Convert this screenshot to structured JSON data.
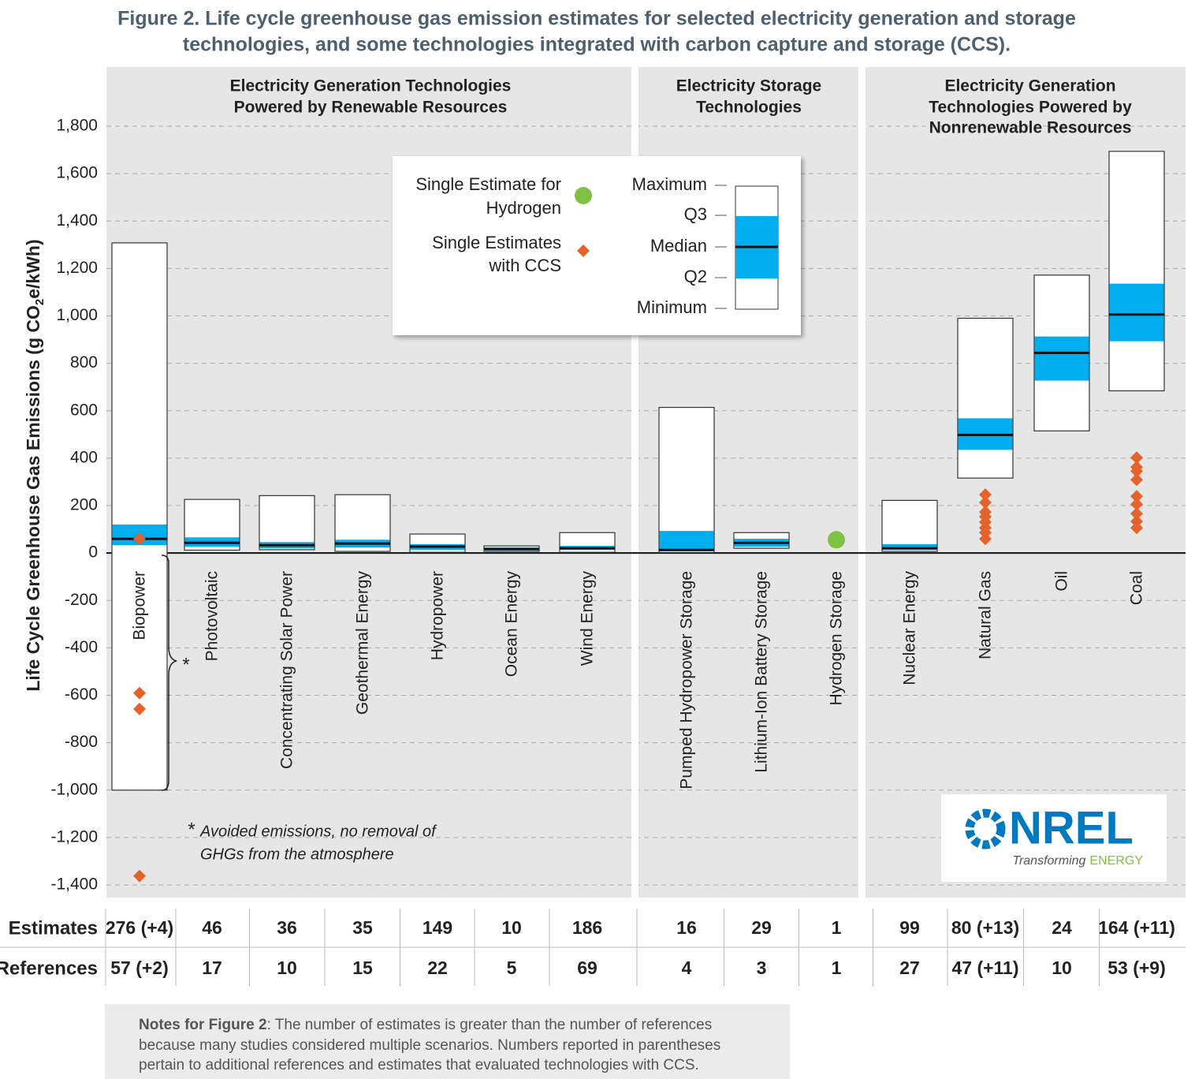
{
  "chart_data": {
    "type": "box",
    "title": [
      "Figure 2. Life cycle greenhouse gas emission estimates for selected electricity generation and storage",
      "technologies, and some technologies integrated with carbon capture and storage (CCS)."
    ],
    "y_label": [
      "Life Cycle Greenhouse Gas Emissions (g CO",
      "2",
      "e/kWh)"
    ],
    "ylim": [
      -1400,
      1800
    ],
    "yticks": [
      {
        "value": -1400,
        "label": "-1,400"
      },
      {
        "value": -1200,
        "label": "-1,200"
      },
      {
        "value": -1000,
        "label": "-1,000"
      },
      -800,
      -600,
      -400,
      -200,
      0,
      200,
      400,
      600,
      800,
      {
        "value": 1000,
        "label": "1,000"
      },
      {
        "value": 1200,
        "label": "1,200"
      },
      {
        "value": 1400,
        "label": "1,400"
      },
      {
        "value": 1600,
        "label": "1,600"
      },
      {
        "value": 1800,
        "label": "1,800"
      }
    ],
    "grid": true,
    "sections": [
      {
        "title": [
          "Electricity Generation Technologies",
          "Powered by Renewable Resources"
        ]
      },
      {
        "title": [
          "Electricity Storage",
          "Technologies"
        ]
      },
      {
        "title": [
          "Electricity Generation",
          "Technologies Powered by",
          "Nonrenewable Resources"
        ]
      }
    ],
    "categories": [
      "Biopower",
      "Photovoltaic",
      "Concentrating Solar Power",
      "Geothermal Energy",
      "Hydropower",
      "Ocean Energy",
      "Wind Energy",
      "Pumped Hydropower Storage",
      "Lithium-Ion Battery Storage",
      "Hydrogen Storage",
      "Nuclear Energy",
      "Natural Gas",
      "Oil",
      "Coal"
    ],
    "box_color": "#00aeef",
    "boxes": [
      {
        "min": -1000,
        "q1": 33,
        "median": 60,
        "q3": 120,
        "max": 1308
      },
      {
        "min": 12,
        "q1": 26,
        "median": 43,
        "q3": 66,
        "max": 226
      },
      {
        "min": 14,
        "q1": 20,
        "median": 33,
        "q3": 46,
        "max": 242
      },
      {
        "min": 7,
        "q1": 23,
        "median": 40,
        "q3": 56,
        "max": 246
      },
      {
        "min": 3,
        "q1": 13,
        "median": 27,
        "q3": 37,
        "max": 80
      },
      {
        "min": 7,
        "q1": 10,
        "median": 17,
        "q3": 23,
        "max": 30
      },
      {
        "min": 3,
        "q1": 13,
        "median": 20,
        "q3": 30,
        "max": 86
      },
      {
        "min": 2,
        "q1": 7,
        "median": 13,
        "q3": 93,
        "max": 614
      },
      {
        "min": 20,
        "q1": 27,
        "median": 43,
        "q3": 60,
        "max": 86
      },
      null,
      {
        "min": 7,
        "q1": 13,
        "median": 20,
        "q3": 37,
        "max": 222
      },
      {
        "min": 316,
        "q1": 435,
        "median": 498,
        "q3": 568,
        "max": 990
      },
      {
        "min": 515,
        "q1": 727,
        "median": 844,
        "q3": 913,
        "max": 1172
      },
      {
        "min": 684,
        "q1": 893,
        "median": 1006,
        "q3": 1136,
        "max": 1694
      }
    ],
    "box_legend": [
      "Maximum",
      "Q3",
      "Median",
      "Q2",
      "Minimum"
    ],
    "hydrogen": {
      "name": [
        "Single Estimate for",
        "Hydrogen"
      ],
      "color": "#7dc242",
      "values": [
        null,
        null,
        null,
        null,
        null,
        null,
        null,
        null,
        null,
        56,
        null,
        null,
        null,
        null
      ]
    },
    "ccs": {
      "name": [
        "Single Estimates",
        "with CCS"
      ],
      "color": "#e5622a",
      "values": [
        [
          60,
          -591,
          -658,
          -1362
        ],
        [],
        [],
        [],
        [],
        [],
        [],
        [],
        [],
        [],
        [],
        [
          246,
          213,
          173,
          153,
          130,
          106,
          86,
          60
        ],
        [],
        [
          402,
          362,
          345,
          309,
          239,
          206,
          166,
          133,
          106
        ]
      ]
    },
    "annotation": {
      "mark": "*",
      "lines": [
        "Avoided emissions, no removal of",
        "GHGs from the atmosphere"
      ]
    },
    "table": {
      "row_labels": [
        "Estimates",
        "References"
      ],
      "rows": [
        [
          "276 (+4)",
          "46",
          "36",
          "35",
          "149",
          "10",
          "186",
          "16",
          "29",
          "1",
          "99",
          "80 (+13)",
          "24",
          "164 (+11)"
        ],
        [
          "57 (+2)",
          "17",
          "10",
          "15",
          "22",
          "5",
          "69",
          "4",
          "3",
          "1",
          "27",
          "47 (+11)",
          "10",
          "53 (+9)"
        ]
      ]
    },
    "notes": {
      "heading": "Notes for Figure 2",
      "lines": [
        ": The number of estimates is greater than the number of references",
        "because many studies considered multiple scenarios. Numbers reported in parentheses",
        "pertain to additional references and estimates that evaluated technologies with CCS."
      ]
    },
    "logo": {
      "name": "NREL",
      "tagline": "Transforming",
      "tagline_accent": "ENERGY"
    }
  }
}
